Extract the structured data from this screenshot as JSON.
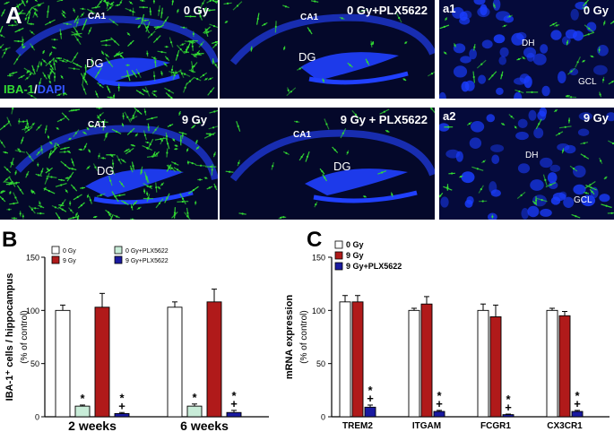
{
  "figure_letters": {
    "a": "A",
    "b": "B",
    "c": "C"
  },
  "panel_a": {
    "tl": {
      "condition": "0 Gy",
      "ca1": "CA1",
      "dg": "DG"
    },
    "tm": {
      "condition": "0 Gy+PLX5622",
      "ca1": "CA1",
      "dg": "DG"
    },
    "bl": {
      "condition": "9 Gy",
      "ca1": "CA1",
      "dg": "DG"
    },
    "bm": {
      "condition": "9 Gy + PLX5622",
      "ca1": "CA1",
      "dg": "DG"
    },
    "a1": {
      "label": "a1",
      "condition": "0 Gy",
      "dh": "DH",
      "gcl": "GCL"
    },
    "a2": {
      "label": "a2",
      "condition": "9 Gy",
      "dh": "DH",
      "gcl": "GCL"
    },
    "stain_iba1": "IBA-1",
    "stain_sep": "/",
    "stain_dapi": "DAPI",
    "colors": {
      "iba1": "#33dd33",
      "dapi": "#1a3dff",
      "background": "#000000"
    }
  },
  "chart_data": [
    {
      "type": "bar",
      "panel": "B",
      "ylabel": "IBA-1⁺ cells / hippocampus",
      "ylabel_sub": "(% of control)",
      "ylim": [
        0,
        150
      ],
      "yticks": [
        0,
        50,
        100,
        150
      ],
      "categories": [
        "2 weeks",
        "6 weeks"
      ],
      "legend": [
        "0 Gy",
        "9 Gy",
        "0 Gy+PLX5622",
        "9 Gy+PLX5622"
      ],
      "series": [
        {
          "name": "0 Gy",
          "color": "#ffffff",
          "values": [
            100,
            103
          ],
          "errors": [
            5,
            5
          ],
          "marks": [
            "",
            ""
          ]
        },
        {
          "name": "0 Gy+PLX5622",
          "color": "#c8ecd8",
          "values": [
            10,
            10
          ],
          "errors": [
            1,
            2
          ],
          "marks": [
            "*",
            "*"
          ]
        },
        {
          "name": "9 Gy",
          "color": "#b01a1a",
          "values": [
            103,
            108
          ],
          "errors": [
            13,
            12
          ],
          "marks": [
            "",
            ""
          ]
        },
        {
          "name": "9 Gy+PLX5622",
          "color": "#1a1aa0",
          "values": [
            3,
            4
          ],
          "errors": [
            1,
            2
          ],
          "marks": [
            "*+",
            "*+"
          ]
        }
      ]
    },
    {
      "type": "bar",
      "panel": "C",
      "ylabel": "mRNA expression",
      "ylabel_sub": "(% of control)",
      "ylim": [
        0,
        150
      ],
      "yticks": [
        0,
        50,
        100,
        150
      ],
      "categories": [
        "TREM2",
        "ITGAM",
        "FCGR1",
        "CX3CR1"
      ],
      "legend": [
        "0 Gy",
        "9 Gy",
        "9 Gy+PLX5622"
      ],
      "series": [
        {
          "name": "0 Gy",
          "color": "#ffffff",
          "values": [
            108,
            100,
            100,
            100
          ],
          "errors": [
            6,
            2,
            6,
            2
          ],
          "marks": [
            "",
            "",
            "",
            ""
          ]
        },
        {
          "name": "9 Gy",
          "color": "#b01a1a",
          "values": [
            108,
            106,
            94,
            95
          ],
          "errors": [
            6,
            7,
            11,
            4
          ],
          "marks": [
            "",
            "",
            "",
            ""
          ]
        },
        {
          "name": "9 Gy+PLX5622",
          "color": "#1a1aa0",
          "values": [
            9,
            5,
            2,
            5
          ],
          "errors": [
            2,
            1,
            0.5,
            1
          ],
          "marks": [
            "*+",
            "*+",
            "*+",
            "*+"
          ]
        }
      ]
    }
  ]
}
